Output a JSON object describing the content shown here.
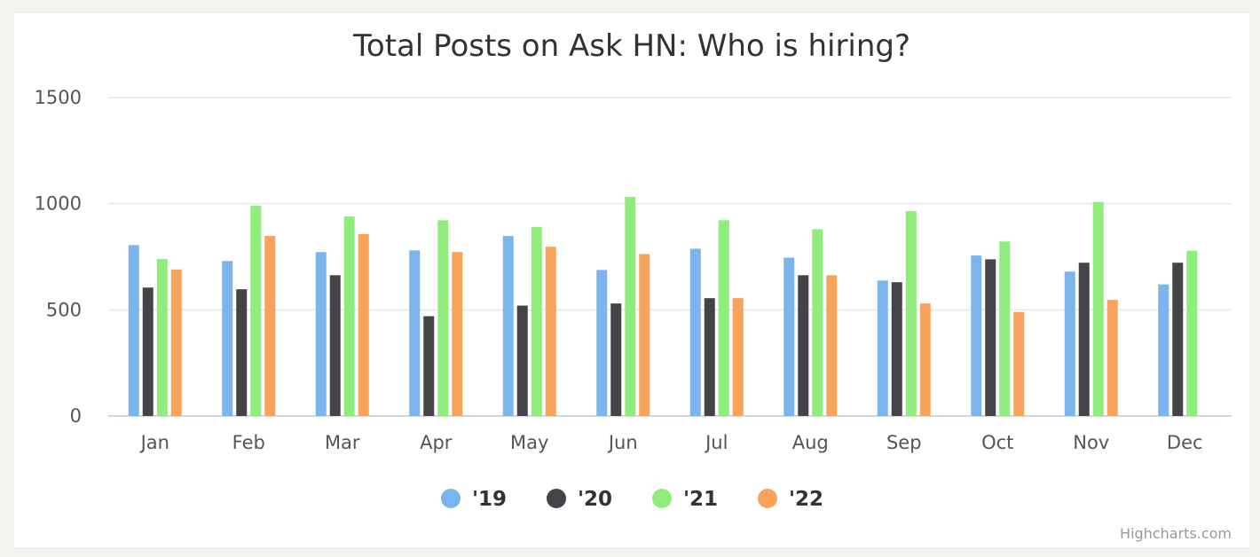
{
  "chart_data": {
    "type": "bar",
    "title": "Total Posts on Ask HN: Who is hiring?",
    "categories": [
      "Jan",
      "Feb",
      "Mar",
      "Apr",
      "May",
      "Jun",
      "Jul",
      "Aug",
      "Sep",
      "Oct",
      "Nov",
      "Dec"
    ],
    "series": [
      {
        "name": "'19",
        "color": "#7cb5ec",
        "values": [
          805,
          730,
          772,
          780,
          848,
          688,
          788,
          746,
          638,
          756,
          680,
          620
        ]
      },
      {
        "name": "'20",
        "color": "#434348",
        "values": [
          605,
          597,
          663,
          470,
          520,
          530,
          555,
          663,
          630,
          738,
          722,
          722
        ]
      },
      {
        "name": "'21",
        "color": "#90ed7d",
        "values": [
          740,
          990,
          940,
          922,
          890,
          1032,
          922,
          880,
          965,
          822,
          1008,
          778
        ]
      },
      {
        "name": "'22",
        "color": "#f7a35c",
        "values": [
          690,
          848,
          857,
          772,
          797,
          763,
          555,
          663,
          530,
          490,
          547,
          null
        ]
      }
    ],
    "ylim": [
      0,
      1500
    ],
    "yticks": [
      0,
      500,
      1000,
      1500
    ],
    "xlabel": "",
    "ylabel": "",
    "grid": true,
    "legend": "bottom-center"
  },
  "credits": "Highcharts.com"
}
